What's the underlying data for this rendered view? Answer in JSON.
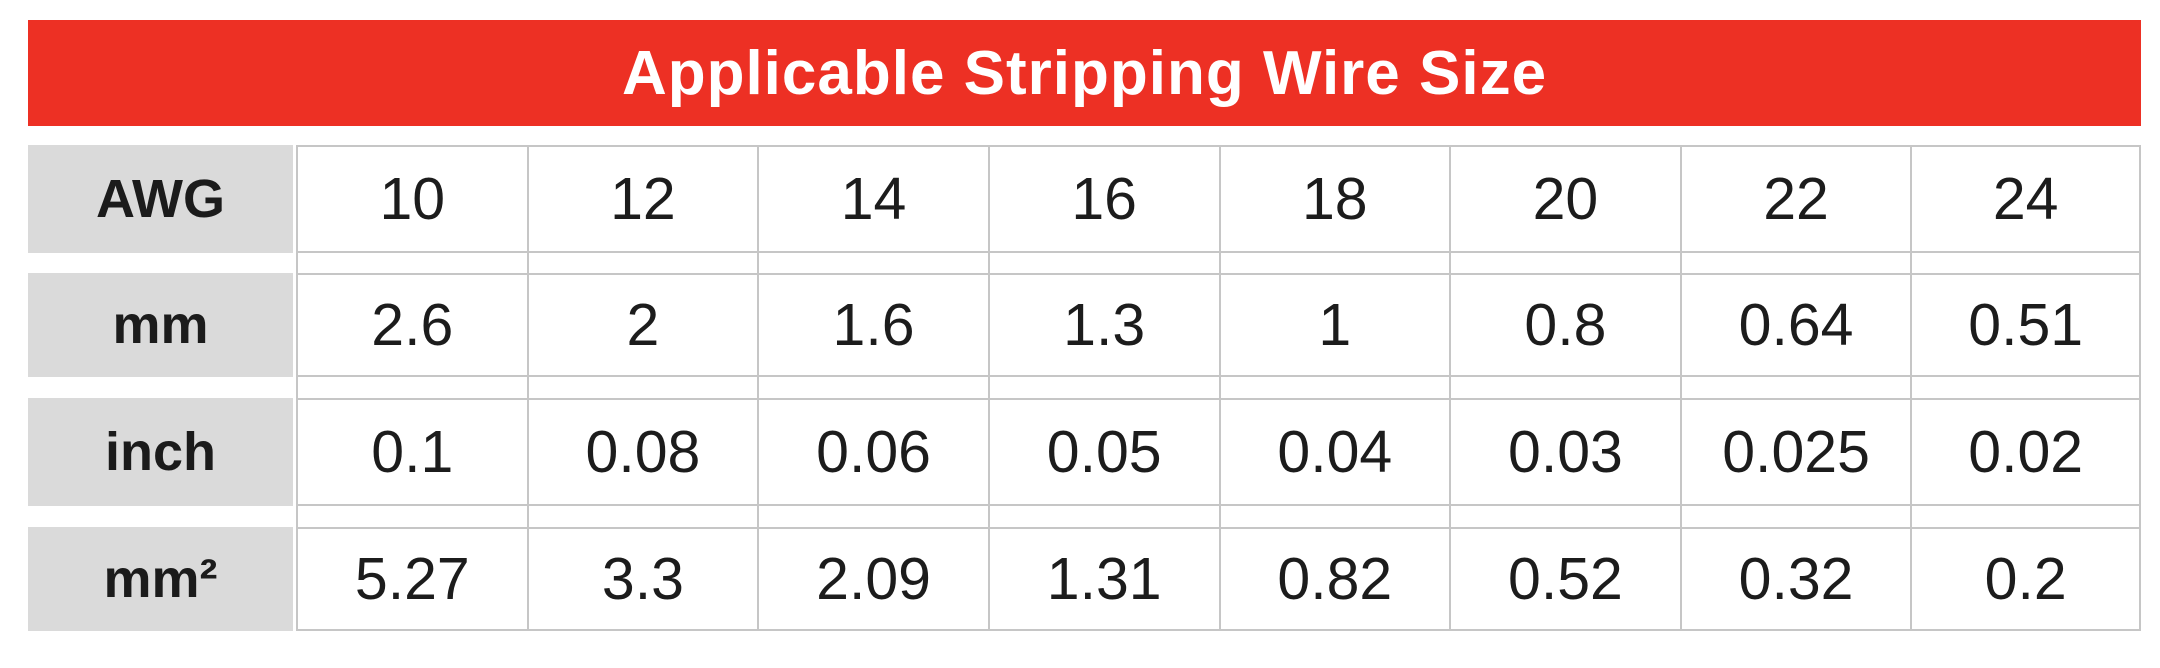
{
  "title": "Applicable Stripping Wire Size",
  "colors": {
    "banner_red": "#ED3024",
    "label_gray": "#DADADA",
    "border_gray": "#C6C6C6",
    "text_dark": "#1C1C1C"
  },
  "table": {
    "rows": [
      {
        "label": "AWG",
        "values": [
          "10",
          "12",
          "14",
          "16",
          "18",
          "20",
          "22",
          "24"
        ]
      },
      {
        "label": "mm",
        "values": [
          "2.6",
          "2",
          "1.6",
          "1.3",
          "1",
          "0.8",
          "0.64",
          "0.51"
        ]
      },
      {
        "label": "inch",
        "values": [
          "0.1",
          "0.08",
          "0.06",
          "0.05",
          "0.04",
          "0.03",
          "0.025",
          "0.02"
        ]
      },
      {
        "label": "mm²",
        "values": [
          "5.27",
          "3.3",
          "2.09",
          "1.31",
          "0.82",
          "0.52",
          "0.32",
          "0.2"
        ]
      }
    ]
  },
  "chart_data": {
    "type": "table",
    "title": "Applicable Stripping Wire Size",
    "row_headers": [
      "AWG",
      "mm",
      "inch",
      "mm²"
    ],
    "rows": [
      {
        "label": "AWG",
        "values": [
          10,
          12,
          14,
          16,
          18,
          20,
          22,
          24
        ]
      },
      {
        "label": "mm",
        "values": [
          2.6,
          2,
          1.6,
          1.3,
          1,
          0.8,
          0.64,
          0.51
        ]
      },
      {
        "label": "inch",
        "values": [
          0.1,
          0.08,
          0.06,
          0.05,
          0.04,
          0.03,
          0.025,
          0.02
        ]
      },
      {
        "label": "mm²",
        "values": [
          5.27,
          3.3,
          2.09,
          1.31,
          0.82,
          0.52,
          0.32,
          0.2
        ]
      }
    ],
    "legend_position": "none",
    "grid": true
  }
}
